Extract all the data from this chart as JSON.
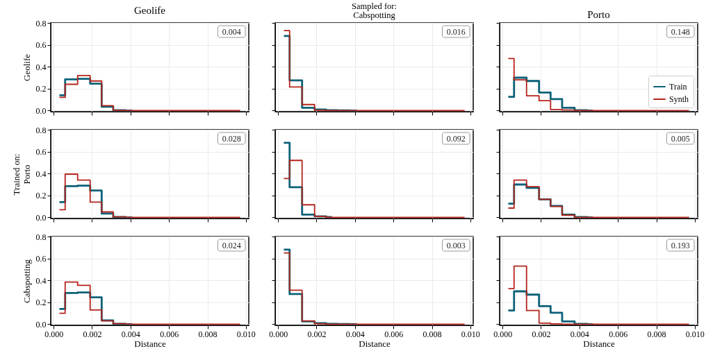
{
  "chart_data": [
    {
      "type": "step",
      "title": "Geolife",
      "ylabel": "Geolife",
      "x": [
        0.0003,
        0.0009,
        0.0016,
        0.0022,
        0.0028,
        0.0034,
        0.0041,
        0.0047,
        0.0053,
        0.0059,
        0.0066,
        0.0072,
        0.0078,
        0.0084,
        0.0091,
        0.0097
      ],
      "series": [
        {
          "color": "#0b6177",
          "values": [
            0.14,
            0.285,
            0.29,
            0.245,
            0.035,
            0.003,
            0,
            null,
            null,
            null,
            null,
            null,
            null,
            null,
            null,
            null
          ]
        },
        {
          "color": "#b5231b",
          "values": [
            0.12,
            0.24,
            0.32,
            0.27,
            0.045,
            0.002,
            0,
            0,
            0,
            0,
            0,
            0,
            0,
            0,
            0,
            0
          ]
        }
      ],
      "xlim": [
        -0.00015,
        0.01015
      ],
      "xticks": [
        0,
        0.002,
        0.004,
        0.006,
        0.008,
        0.01
      ],
      "ylim": [
        -0.01,
        0.8
      ],
      "yticks": [
        {
          "value": 0,
          "label": "0.0"
        },
        {
          "value": 0.2,
          "label": "0.2"
        },
        {
          "value": 0.4,
          "label": "0.4"
        },
        {
          "value": 0.6,
          "label": "0.6"
        },
        {
          "value": 0.8,
          "label": "0.8"
        }
      ],
      "grid": true,
      "tick_labels": "y",
      "annotations": [
        "0.004"
      ]
    },
    {
      "type": "step",
      "title": "Sampled for:\nCabspotting",
      "x": [
        0.0003,
        0.0009,
        0.0016,
        0.0022,
        0.0028,
        0.0034,
        0.0041,
        0.0047,
        0.0053,
        0.0059,
        0.0066,
        0.0072,
        0.0078,
        0.0084,
        0.0091,
        0.0097
      ],
      "series": [
        {
          "color": "#0b6177",
          "values": [
            0.68,
            0.275,
            0.025,
            0.01,
            0.003,
            0.002,
            0,
            null,
            null,
            null,
            null,
            null,
            null,
            null,
            null,
            null
          ]
        },
        {
          "color": "#b5231b",
          "values": [
            0.73,
            0.215,
            0.055,
            0.003,
            0,
            0,
            0,
            0,
            0,
            0,
            0,
            0,
            0,
            0,
            0,
            0
          ]
        }
      ],
      "xlim": [
        -0.00015,
        0.01015
      ],
      "xticks": [
        0,
        0.002,
        0.004,
        0.006,
        0.008,
        0.01
      ],
      "ylim": [
        -0.01,
        0.8
      ],
      "yticks": [
        0,
        0.2,
        0.4,
        0.6,
        0.8
      ],
      "grid": true,
      "tick_labels": false,
      "annotations": [
        "0.016"
      ]
    },
    {
      "type": "step",
      "title": "Porto",
      "x": [
        0.0003,
        0.0009,
        0.0016,
        0.0022,
        0.0028,
        0.0034,
        0.0041,
        0.0047,
        0.0053,
        0.0059,
        0.0066,
        0.0072,
        0.0078,
        0.0084,
        0.0091,
        0.0097
      ],
      "series": [
        {
          "name": "Train",
          "color": "#0b6177",
          "values": [
            0.125,
            0.3,
            0.27,
            0.165,
            0.105,
            0.025,
            0.003,
            0,
            null,
            null,
            null,
            null,
            null,
            null,
            null,
            null
          ]
        },
        {
          "name": "Synth",
          "color": "#b5231b",
          "values": [
            0.475,
            0.28,
            0.135,
            0.09,
            0.01,
            0.005,
            0,
            0,
            0,
            0,
            0,
            0,
            0,
            0,
            0,
            0
          ]
        }
      ],
      "xlim": [
        -0.00015,
        0.01015
      ],
      "xticks": [
        0,
        0.002,
        0.004,
        0.006,
        0.008,
        0.01
      ],
      "ylim": [
        -0.01,
        0.8
      ],
      "yticks": [
        0,
        0.2,
        0.4,
        0.6,
        0.8
      ],
      "grid": true,
      "tick_labels": false,
      "legend": "bottom right",
      "annotations": [
        "0.148"
      ]
    },
    {
      "type": "step",
      "ylabel": "Trained on:\nPorto",
      "x": [
        0.0003,
        0.0009,
        0.0016,
        0.0022,
        0.0028,
        0.0034,
        0.0041,
        0.0047,
        0.0053,
        0.0059,
        0.0066,
        0.0072,
        0.0078,
        0.0084,
        0.0091,
        0.0097
      ],
      "series": [
        {
          "color": "#0b6177",
          "values": [
            0.14,
            0.285,
            0.29,
            0.245,
            0.035,
            0.003,
            0,
            null,
            null,
            null,
            null,
            null,
            null,
            null,
            null,
            null
          ]
        },
        {
          "color": "#b5231b",
          "values": [
            0.07,
            0.395,
            0.34,
            0.14,
            0.05,
            0.005,
            0,
            0,
            0,
            0,
            0,
            0,
            0,
            0,
            0,
            0
          ]
        }
      ],
      "xlim": [
        -0.00015,
        0.01015
      ],
      "xticks": [
        0,
        0.002,
        0.004,
        0.006,
        0.008,
        0.01
      ],
      "ylim": [
        -0.01,
        0.8
      ],
      "yticks": [
        {
          "value": 0,
          "label": "0.0"
        },
        {
          "value": 0.2,
          "label": "0.2"
        },
        {
          "value": 0.4,
          "label": "0.4"
        },
        {
          "value": 0.6,
          "label": "0.6"
        },
        {
          "value": 0.8,
          "label": "0.8"
        }
      ],
      "grid": true,
      "tick_labels": "y",
      "annotations": [
        "0.028"
      ]
    },
    {
      "type": "step",
      "x": [
        0.0003,
        0.0009,
        0.0016,
        0.0022,
        0.0028,
        0.0034,
        0.0041,
        0.0047,
        0.0053,
        0.0059,
        0.0066,
        0.0072,
        0.0078,
        0.0084,
        0.0091,
        0.0097
      ],
      "series": [
        {
          "color": "#0b6177",
          "values": [
            0.68,
            0.275,
            0.025,
            0.01,
            0.003,
            null,
            null,
            null,
            null,
            null,
            null,
            null,
            null,
            null,
            null,
            null
          ]
        },
        {
          "color": "#b5231b",
          "values": [
            0.355,
            0.52,
            0.115,
            0.01,
            0,
            0,
            0,
            0,
            0,
            0,
            0,
            0,
            0,
            0,
            0,
            0
          ]
        }
      ],
      "xlim": [
        -0.00015,
        0.01015
      ],
      "xticks": [
        0,
        0.002,
        0.004,
        0.006,
        0.008,
        0.01
      ],
      "ylim": [
        -0.01,
        0.8
      ],
      "yticks": [
        0,
        0.2,
        0.4,
        0.6,
        0.8
      ],
      "grid": true,
      "tick_labels": false,
      "annotations": [
        "0.092"
      ]
    },
    {
      "type": "step",
      "x": [
        0.0003,
        0.0009,
        0.0016,
        0.0022,
        0.0028,
        0.0034,
        0.0041,
        0.0047,
        0.0053,
        0.0059,
        0.0066,
        0.0072,
        0.0078,
        0.0084,
        0.0091,
        0.0097
      ],
      "series": [
        {
          "color": "#0b6177",
          "values": [
            0.125,
            0.3,
            0.27,
            0.165,
            0.105,
            0.025,
            0.003,
            0,
            null,
            null,
            null,
            null,
            null,
            null,
            null,
            null
          ]
        },
        {
          "color": "#b5231b",
          "values": [
            0.085,
            0.34,
            0.28,
            0.165,
            0.1,
            0.02,
            0,
            0,
            0,
            0,
            0,
            0,
            0,
            0,
            0,
            0
          ]
        }
      ],
      "xlim": [
        -0.00015,
        0.01015
      ],
      "xticks": [
        0,
        0.002,
        0.004,
        0.006,
        0.008,
        0.01
      ],
      "ylim": [
        -0.01,
        0.8
      ],
      "yticks": [
        0,
        0.2,
        0.4,
        0.6,
        0.8
      ],
      "grid": true,
      "tick_labels": false,
      "annotations": [
        "0.005"
      ]
    },
    {
      "type": "step",
      "ylabel": "Cabspotting",
      "xlabel": "Distance",
      "x": [
        0.0003,
        0.0009,
        0.0016,
        0.0022,
        0.0028,
        0.0034,
        0.0041,
        0.0047,
        0.0053,
        0.0059,
        0.0066,
        0.0072,
        0.0078,
        0.0084,
        0.0091,
        0.0097
      ],
      "series": [
        {
          "color": "#0b6177",
          "values": [
            0.14,
            0.285,
            0.29,
            0.245,
            0.035,
            0.003,
            0,
            null,
            null,
            null,
            null,
            null,
            null,
            null,
            null,
            null
          ]
        },
        {
          "color": "#b5231b",
          "values": [
            0.1,
            0.385,
            0.355,
            0.13,
            0.03,
            0.005,
            0,
            0,
            0,
            0,
            0,
            0,
            0,
            0,
            0,
            0
          ]
        }
      ],
      "xlim": [
        -0.00015,
        0.01015
      ],
      "xticks": [
        {
          "value": 0,
          "label": "0.000"
        },
        {
          "value": 0.002,
          "label": "0.002"
        },
        {
          "value": 0.004,
          "label": "0.004"
        },
        {
          "value": 0.006,
          "label": "0.006"
        },
        {
          "value": 0.008,
          "label": "0.008"
        },
        {
          "value": 0.01,
          "label": "0.010"
        }
      ],
      "ylim": [
        -0.01,
        0.8
      ],
      "yticks": [
        {
          "value": 0,
          "label": "0.0"
        },
        {
          "value": 0.2,
          "label": "0.2"
        },
        {
          "value": 0.4,
          "label": "0.4"
        },
        {
          "value": 0.6,
          "label": "0.6"
        },
        {
          "value": 0.8,
          "label": "0.8"
        }
      ],
      "grid": true,
      "annotations": [
        "0.024"
      ]
    },
    {
      "type": "step",
      "xlabel": "Distance",
      "x": [
        0.0003,
        0.0009,
        0.0016,
        0.0022,
        0.0028,
        0.0034,
        0.0041,
        0.0047,
        0.0053,
        0.0059,
        0.0066,
        0.0072,
        0.0078,
        0.0084,
        0.0091,
        0.0097
      ],
      "series": [
        {
          "color": "#0b6177",
          "values": [
            0.68,
            0.275,
            0.025,
            0.01,
            0.003,
            0.002,
            0,
            null,
            null,
            null,
            null,
            null,
            null,
            null,
            null,
            null
          ]
        },
        {
          "color": "#b5231b",
          "values": [
            0.65,
            0.31,
            0.03,
            0.005,
            0,
            0,
            0,
            0,
            0,
            0,
            0,
            0,
            0,
            0,
            0,
            0
          ]
        }
      ],
      "xlim": [
        -0.00015,
        0.01015
      ],
      "xticks": [
        {
          "value": 0,
          "label": "0.000"
        },
        {
          "value": 0.002,
          "label": "0.002"
        },
        {
          "value": 0.004,
          "label": "0.004"
        },
        {
          "value": 0.006,
          "label": "0.006"
        },
        {
          "value": 0.008,
          "label": "0.008"
        },
        {
          "value": 0.01,
          "label": "0.010"
        }
      ],
      "ylim": [
        -0.01,
        0.8
      ],
      "yticks": [
        0,
        0.2,
        0.4,
        0.6,
        0.8
      ],
      "grid": true,
      "tick_labels": "x",
      "annotations": [
        "0.003"
      ]
    },
    {
      "type": "step",
      "xlabel": "Distance",
      "x": [
        0.0003,
        0.0009,
        0.0016,
        0.0022,
        0.0028,
        0.0034,
        0.0041,
        0.0047,
        0.0053,
        0.0059,
        0.0066,
        0.0072,
        0.0078,
        0.0084,
        0.0091,
        0.0097
      ],
      "series": [
        {
          "color": "#0b6177",
          "values": [
            0.125,
            0.3,
            0.27,
            0.165,
            0.105,
            0.025,
            0.003,
            0,
            null,
            null,
            null,
            null,
            null,
            null,
            null,
            null
          ]
        },
        {
          "color": "#b5231b",
          "values": [
            0.325,
            0.53,
            0.125,
            0.01,
            0.003,
            0,
            0,
            0,
            0,
            0,
            0,
            0,
            0,
            0,
            0,
            0
          ]
        }
      ],
      "xlim": [
        -0.00015,
        0.01015
      ],
      "xticks": [
        {
          "value": 0,
          "label": "0.000"
        },
        {
          "value": 0.002,
          "label": "0.002"
        },
        {
          "value": 0.004,
          "label": "0.004"
        },
        {
          "value": 0.006,
          "label": "0.006"
        },
        {
          "value": 0.008,
          "label": "0.008"
        },
        {
          "value": 0.01,
          "label": "0.010"
        }
      ],
      "ylim": [
        -0.01,
        0.8
      ],
      "yticks": [
        0,
        0.2,
        0.4,
        0.6,
        0.8
      ],
      "grid": true,
      "tick_labels": "x",
      "annotations": [
        "0.193"
      ]
    }
  ]
}
